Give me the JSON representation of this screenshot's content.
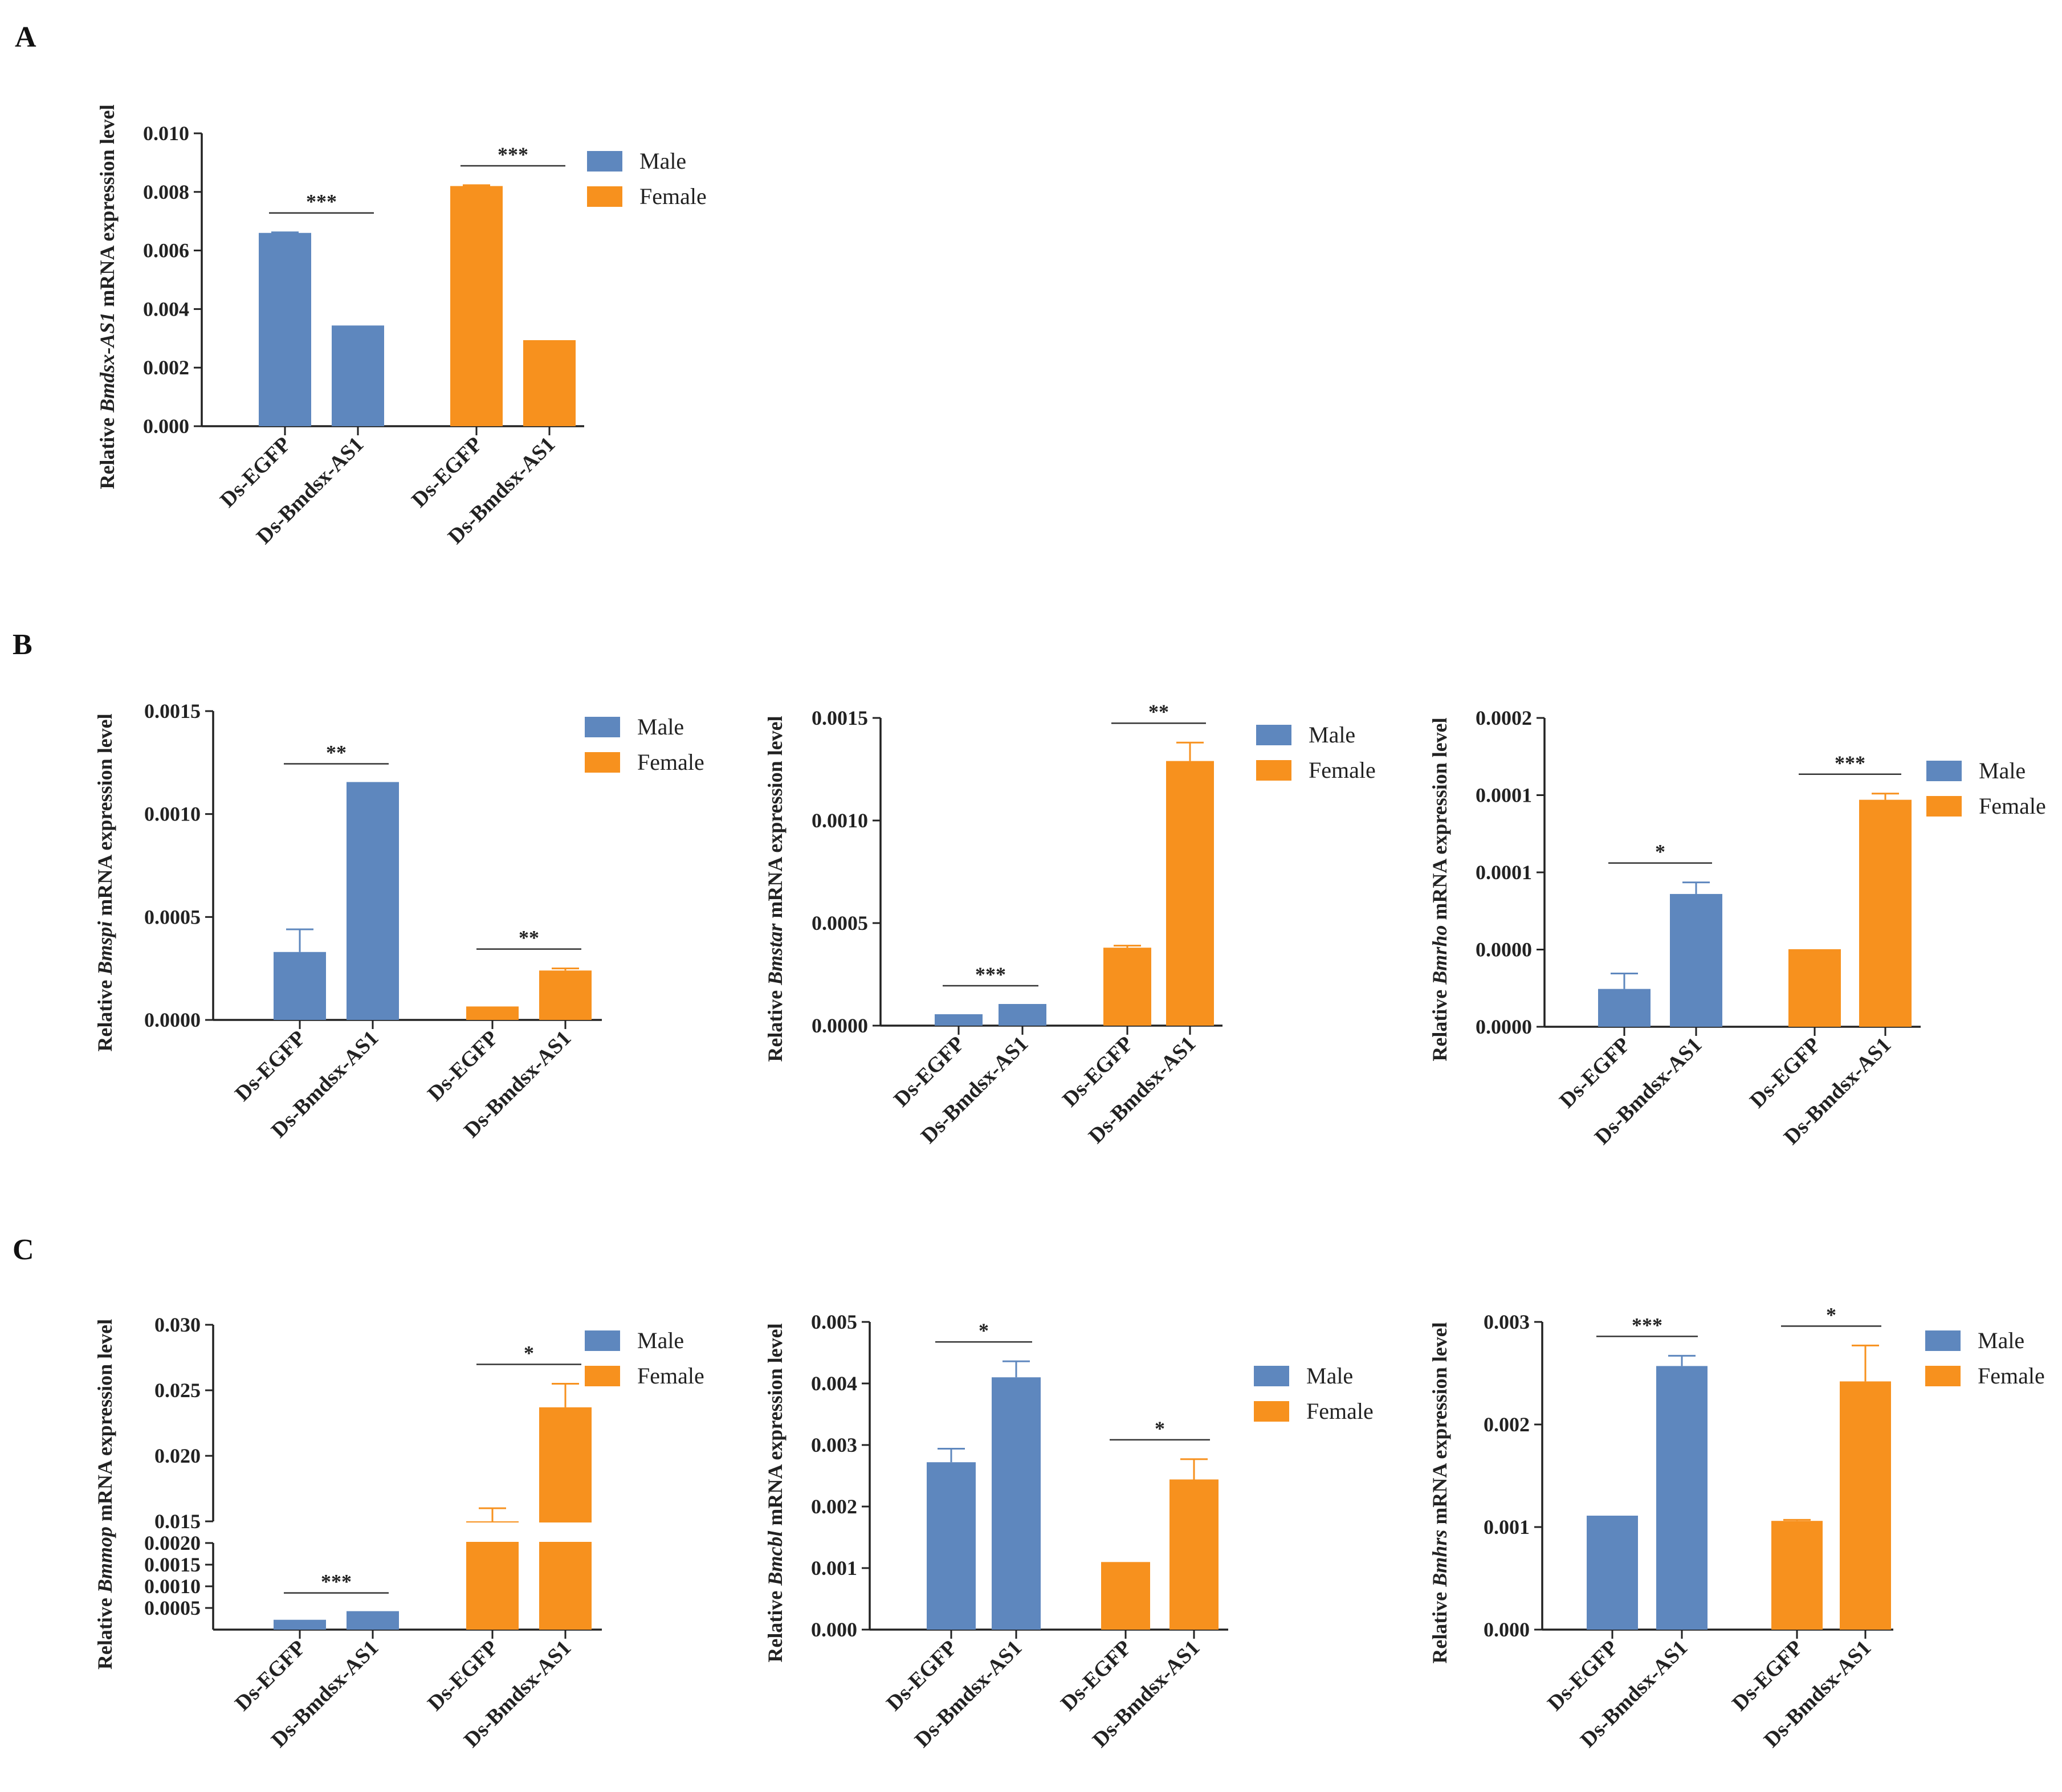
{
  "colors": {
    "male": "#5E87BE",
    "female": "#F7911E",
    "axis": "#222222"
  },
  "panel_letters": [
    "A",
    "B",
    "C"
  ],
  "legend": {
    "male": "Male",
    "female": "Female"
  },
  "chart_data": [
    {
      "id": "a1",
      "panel": "A",
      "type": "bar",
      "ylabel_pre": "Relative ",
      "ylabel_gene": "Bmdsx-AS1",
      "ylabel_post": " mRNA expression level",
      "categories": [
        "Ds-EGFP",
        "Ds-Bmdsx-AS1",
        "Ds-EGFP",
        "Ds-Bmdsx-AS1"
      ],
      "groups": [
        "Male",
        "Male",
        "Female",
        "Female"
      ],
      "values": [
        0.0066,
        0.0034,
        0.0082,
        0.0029
      ],
      "errors": [
        2e-05,
        0.0,
        3e-05,
        0.0
      ],
      "ylim": [
        0,
        0.01
      ],
      "yticks": [
        "0.000",
        "0.002",
        "0.004",
        "0.006",
        "0.008",
        "0.010"
      ],
      "significance": [
        {
          "between": [
            0,
            1
          ],
          "label": "***"
        },
        {
          "between": [
            2,
            3
          ],
          "label": "***"
        }
      ]
    },
    {
      "id": "b1",
      "panel": "B",
      "type": "bar",
      "ylabel_pre": "Relative ",
      "ylabel_gene": "Bmspi",
      "ylabel_post": " mRNA expression level",
      "categories": [
        "Ds-EGFP",
        "Ds-Bmdsx-AS1",
        "Ds-EGFP",
        "Ds-Bmdsx-AS1"
      ],
      "groups": [
        "Male",
        "Male",
        "Female",
        "Female"
      ],
      "values": [
        0.00033,
        0.00115,
        6e-05,
        0.00024
      ],
      "errors": [
        0.00011,
        0.0,
        0.0,
        1e-05
      ],
      "ylim": [
        0,
        0.0015
      ],
      "yticks": [
        "0.0000",
        "0.0005",
        "0.0010",
        "0.0015"
      ],
      "significance": [
        {
          "between": [
            0,
            1
          ],
          "label": "**"
        },
        {
          "between": [
            2,
            3
          ],
          "label": "**"
        }
      ]
    },
    {
      "id": "b2",
      "panel": "B",
      "type": "bar",
      "ylabel_pre": "Relative ",
      "ylabel_gene": "Bmstar",
      "ylabel_post": " mRNA expression level",
      "categories": [
        "Ds-EGFP",
        "Ds-Bmdsx-AS1",
        "Ds-EGFP",
        "Ds-Bmdsx-AS1"
      ],
      "groups": [
        "Male",
        "Male",
        "Female",
        "Female"
      ],
      "values": [
        5e-05,
        0.0001,
        0.00038,
        0.00129
      ],
      "errors": [
        0.0,
        0.0,
        1e-05,
        9e-05
      ],
      "ylim": [
        0,
        0.0015
      ],
      "yticks": [
        "0.0000",
        "0.0005",
        "0.0010",
        "0.0015"
      ],
      "significance": [
        {
          "between": [
            0,
            1
          ],
          "label": "***"
        },
        {
          "between": [
            2,
            3
          ],
          "label": "**"
        }
      ]
    },
    {
      "id": "b3",
      "panel": "B",
      "type": "bar",
      "ylabel_pre": "Relative ",
      "ylabel_gene": "Bmrho",
      "ylabel_post": " mRNA expression level",
      "categories": [
        "Ds-EGFP",
        "Ds-Bmdsx-AS1",
        "Ds-EGFP",
        "Ds-Bmdsx-AS1"
      ],
      "groups": [
        "Male",
        "Male",
        "Female",
        "Female"
      ],
      "values": [
        2.45e-05,
        8.6e-05,
        4.95e-05,
        0.000147
      ],
      "errors": [
        1e-05,
        7.5e-06,
        0.0,
        4e-06
      ],
      "ylim": [
        0,
        0.0002
      ],
      "yticks": [
        "0.0000",
        "0.0000",
        "0.0001",
        "0.0001",
        "0.0002"
      ],
      "significance": [
        {
          "between": [
            0,
            1
          ],
          "label": "*"
        },
        {
          "between": [
            2,
            3
          ],
          "label": "***"
        }
      ]
    },
    {
      "id": "c1",
      "panel": "C",
      "type": "bar",
      "ylabel_pre": "Relative ",
      "ylabel_gene": "Bmmop",
      "ylabel_post": " mRNA expression level",
      "categories": [
        "Ds-EGFP",
        "Ds-Bmdsx-AS1",
        "Ds-EGFP",
        "Ds-Bmdsx-AS1"
      ],
      "groups": [
        "Male",
        "Male",
        "Female",
        "Female"
      ],
      "values": [
        0.0002,
        0.0004,
        0.015,
        0.0237
      ],
      "errors": [
        0.0,
        0.0,
        0.001,
        0.0018
      ],
      "ylim": [
        0,
        0.03
      ],
      "axis_break": {
        "lower": [
          0,
          0.002
        ],
        "upper": [
          0.015,
          0.03
        ]
      },
      "yticks_lower": [
        "0.0005",
        "0.0010",
        "0.0015",
        "0.0020"
      ],
      "yticks_upper": [
        "0.015",
        "0.020",
        "0.025",
        "0.030"
      ],
      "significance": [
        {
          "between": [
            0,
            1
          ],
          "label": "***"
        },
        {
          "between": [
            2,
            3
          ],
          "label": "*"
        }
      ]
    },
    {
      "id": "c2",
      "panel": "C",
      "type": "bar",
      "ylabel_pre": "Relative ",
      "ylabel_gene": "Bmcbl",
      "ylabel_post": " mRNA expression level",
      "categories": [
        "Ds-EGFP",
        "Ds-Bmdsx-AS1",
        "Ds-EGFP",
        "Ds-Bmdsx-AS1"
      ],
      "groups": [
        "Male",
        "Male",
        "Female",
        "Female"
      ],
      "values": [
        0.00272,
        0.0041,
        0.00108,
        0.00244
      ],
      "errors": [
        0.00022,
        0.00026,
        0.0,
        0.00033
      ],
      "ylim": [
        0,
        0.005
      ],
      "yticks": [
        "0.000",
        "0.001",
        "0.002",
        "0.003",
        "0.004",
        "0.005"
      ],
      "significance": [
        {
          "between": [
            0,
            1
          ],
          "label": "*"
        },
        {
          "between": [
            2,
            3
          ],
          "label": "*"
        }
      ]
    },
    {
      "id": "c3",
      "panel": "C",
      "type": "bar",
      "ylabel_pre": "Relative ",
      "ylabel_gene": "Bmhrs",
      "ylabel_post": " mRNA expression level",
      "categories": [
        "Ds-EGFP",
        "Ds-Bmdsx-AS1",
        "Ds-EGFP",
        "Ds-Bmdsx-AS1"
      ],
      "groups": [
        "Male",
        "Male",
        "Female",
        "Female"
      ],
      "values": [
        0.0011,
        0.00257,
        0.00106,
        0.00242
      ],
      "errors": [
        0.0,
        0.0001,
        1e-05,
        0.00035
      ],
      "ylim": [
        0,
        0.003
      ],
      "yticks": [
        "0.000",
        "0.001",
        "0.002",
        "0.003"
      ],
      "significance": [
        {
          "between": [
            0,
            1
          ],
          "label": "***"
        },
        {
          "between": [
            2,
            3
          ],
          "label": "*"
        }
      ]
    }
  ]
}
